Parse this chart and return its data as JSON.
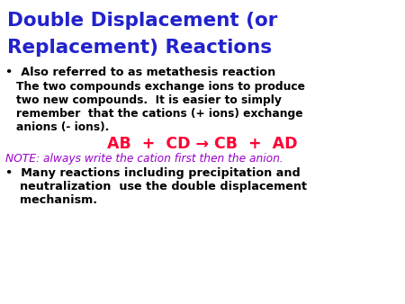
{
  "title_line1": "Double Displacement (or",
  "title_line2": "Replacement) Reactions",
  "title_color": "#2222cc",
  "bullet1": "•  Also referred to as metathesis reaction",
  "bullet1_color": "#000000",
  "body1_line1": "The two compounds exchange ions to produce",
  "body1_line2": "two new compounds.  It is easier to simply",
  "body1_line3": "remember  that the cations (+ ions) exchange",
  "body1_line4": "anions (- ions).",
  "body1_color": "#000000",
  "equation": "AB  +  CD → CB  +  AD",
  "equation_color": "#ff0033",
  "note": "NOTE: always write the cation first then the anion.",
  "note_color": "#9900cc",
  "bullet2_line1": "•  Many reactions including precipitation and",
  "bullet2_line2": "neutralization  use the double displacement",
  "bullet2_line3": "mechanism.",
  "bullet2_color": "#000000",
  "bg_color": "#ffffff",
  "title_fontsize": 15.5,
  "bullet_fontsize": 9.2,
  "body_fontsize": 8.8,
  "eq_fontsize": 12.5,
  "note_fontsize": 8.8
}
